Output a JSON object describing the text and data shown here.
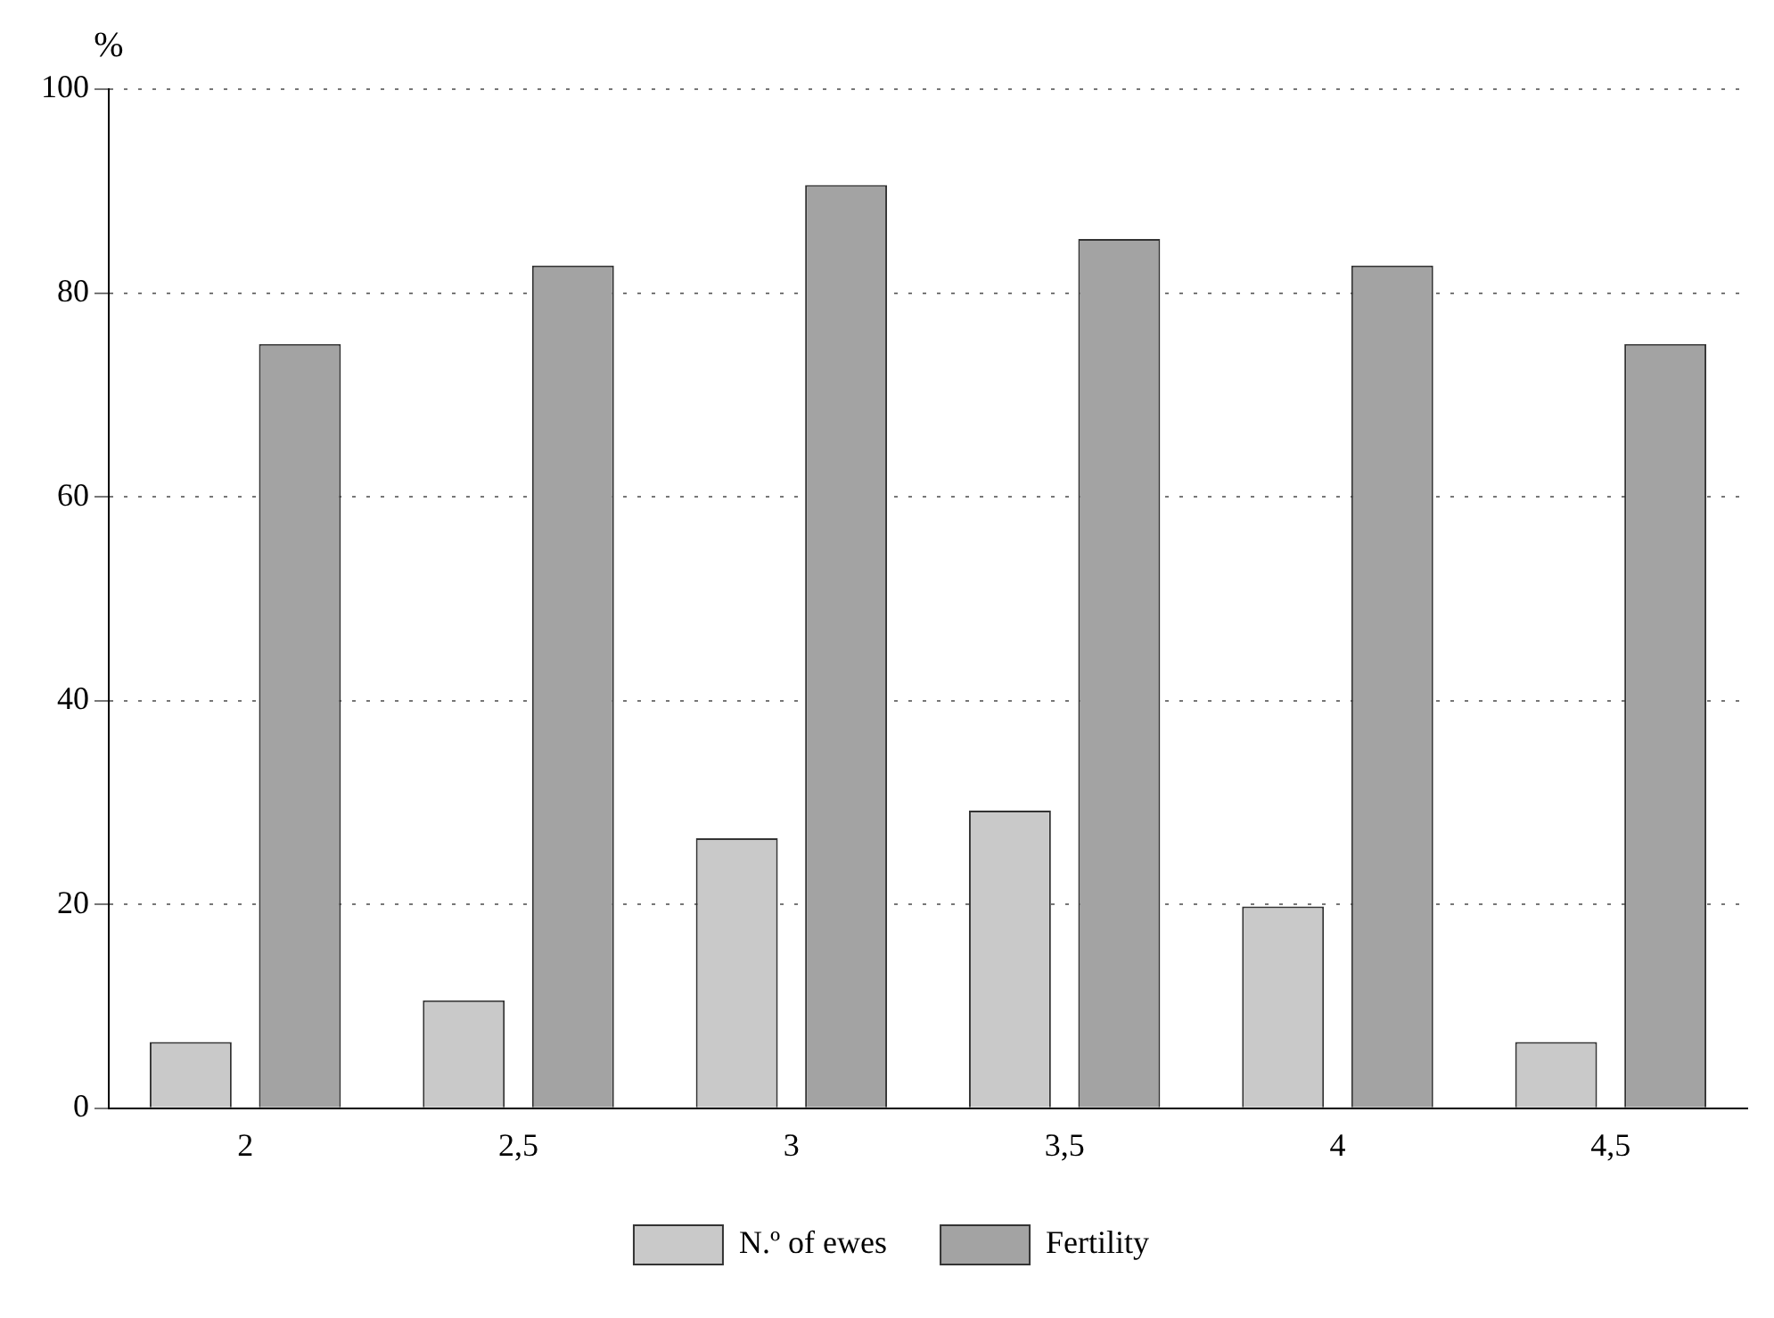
{
  "chart_data": {
    "type": "bar",
    "ylabel": "%",
    "categories": [
      "2",
      "2,5",
      "3",
      "3,5",
      "4",
      "4,5"
    ],
    "series": [
      {
        "name": "N.º of ewes",
        "color": "#c9c9c9",
        "values": [
          6.5,
          10.6,
          26.5,
          29.2,
          19.8,
          6.5
        ]
      },
      {
        "name": "Fertility",
        "color": "#a3a3a3",
        "values": [
          75,
          82.7,
          90.6,
          85.3,
          82.7,
          75
        ]
      }
    ],
    "ylim": [
      0,
      100
    ],
    "yticks": [
      0,
      20,
      40,
      60,
      80,
      100
    ],
    "grid": "y",
    "legend": "bottom"
  }
}
